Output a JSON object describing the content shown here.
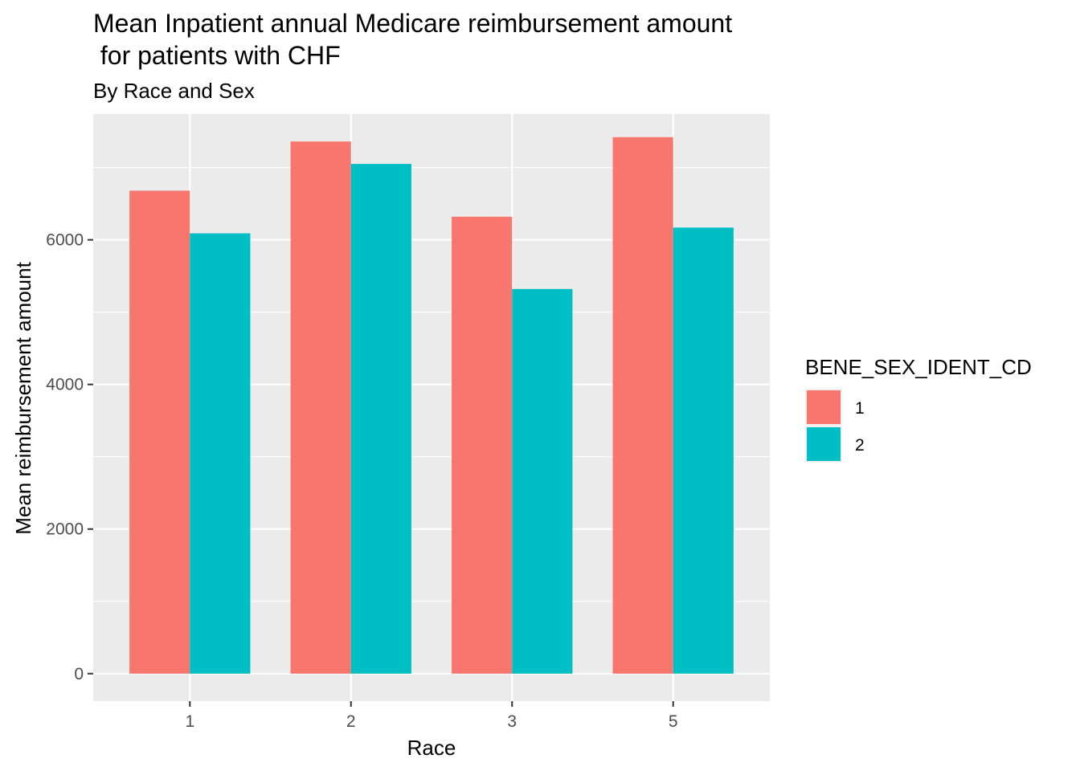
{
  "chart_data": {
    "type": "bar",
    "title_line1": "Mean Inpatient annual Medicare reimbursement amount",
    "title_line2": " for patients with CHF",
    "subtitle": "By Race and Sex",
    "xlabel": "Race",
    "ylabel": "Mean reimbursement amount",
    "categories": [
      "1",
      "2",
      "3",
      "5"
    ],
    "series": [
      {
        "name": "1",
        "color": "#F8766D",
        "values": [
          6680,
          7360,
          6320,
          7420
        ]
      },
      {
        "name": "2",
        "color": "#00BFC4",
        "values": [
          6090,
          7050,
          5320,
          6170
        ]
      }
    ],
    "ylim": [
      -380,
      7740
    ],
    "y_ticks": [
      0,
      2000,
      4000,
      6000
    ],
    "y_tick_labels": [
      "0",
      "2000",
      "4000",
      "6000"
    ],
    "grid": true,
    "panel_background": "#EBEBEB",
    "gridline_color": "#FFFFFF",
    "legend": {
      "title": "BENE_SEX_IDENT_CD",
      "placement": "right",
      "items": [
        "1",
        "2"
      ]
    }
  }
}
